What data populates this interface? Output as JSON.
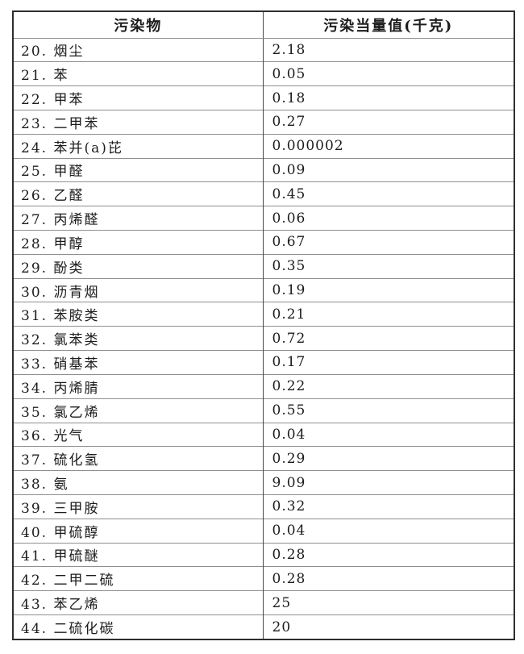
{
  "colors": {
    "background": "#ffffff",
    "text": "#1c1c1c",
    "outer_border": "#2e2e2e",
    "grid_line": "#8f8f8f",
    "divider": "#4a4a4a"
  },
  "table": {
    "headers": {
      "pollutant": "污染物",
      "value": "污染当量值(千克)"
    },
    "rows": [
      {
        "pollutant": "20. 烟尘",
        "value": "2.18"
      },
      {
        "pollutant": "21. 苯",
        "value": "0.05"
      },
      {
        "pollutant": "22. 甲苯",
        "value": "0.18"
      },
      {
        "pollutant": "23. 二甲苯",
        "value": "0.27"
      },
      {
        "pollutant": "24. 苯并(a)芘",
        "value": "0.000002"
      },
      {
        "pollutant": "25. 甲醛",
        "value": "0.09"
      },
      {
        "pollutant": "26. 乙醛",
        "value": "0.45"
      },
      {
        "pollutant": "27. 丙烯醛",
        "value": "0.06"
      },
      {
        "pollutant": "28. 甲醇",
        "value": "0.67"
      },
      {
        "pollutant": "29. 酚类",
        "value": "0.35"
      },
      {
        "pollutant": "30. 沥青烟",
        "value": "0.19"
      },
      {
        "pollutant": "31. 苯胺类",
        "value": "0.21"
      },
      {
        "pollutant": "32. 氯苯类",
        "value": "0.72"
      },
      {
        "pollutant": "33. 硝基苯",
        "value": "0.17"
      },
      {
        "pollutant": "34. 丙烯腈",
        "value": "0.22"
      },
      {
        "pollutant": "35. 氯乙烯",
        "value": "0.55"
      },
      {
        "pollutant": "36. 光气",
        "value": "0.04"
      },
      {
        "pollutant": "37. 硫化氢",
        "value": "0.29"
      },
      {
        "pollutant": "38. 氨",
        "value": "9.09"
      },
      {
        "pollutant": "39. 三甲胺",
        "value": "0.32"
      },
      {
        "pollutant": "40. 甲硫醇",
        "value": "0.04"
      },
      {
        "pollutant": "41. 甲硫醚",
        "value": "0.28"
      },
      {
        "pollutant": "42. 二甲二硫",
        "value": "0.28"
      },
      {
        "pollutant": "43. 苯乙烯",
        "value": "25"
      },
      {
        "pollutant": "44. 二硫化碳",
        "value": "20"
      }
    ]
  }
}
